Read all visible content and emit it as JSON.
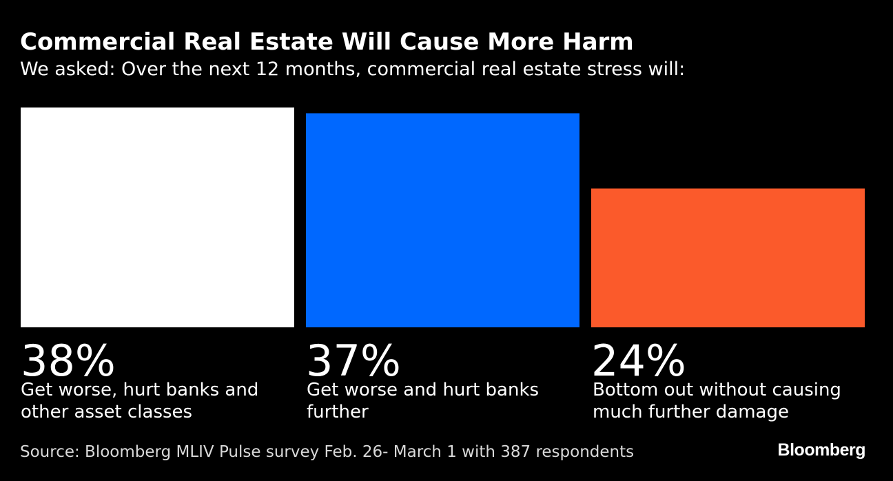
{
  "title": "Commercial Real Estate Will Cause More Harm",
  "subtitle": "We asked: Over the next 12 months, commercial real estate stress will:",
  "chart_data": {
    "type": "bar",
    "categories": [
      "Get worse, hurt banks and other asset classes",
      "Get worse and hurt banks further",
      "Bottom out without causing much further damage"
    ],
    "values": [
      38,
      37,
      24
    ],
    "value_labels": [
      "38%",
      "37%",
      "24%"
    ],
    "colors": [
      "#ffffff",
      "#0068ff",
      "#fb5a2b"
    ],
    "ylim": [
      0,
      38
    ],
    "grid": false,
    "legend": "none",
    "xlabel": "",
    "ylabel": ""
  },
  "source": "Source: Bloomberg MLIV Pulse survey Feb. 26- March 1 with 387 respondents",
  "logo": "Bloomberg"
}
